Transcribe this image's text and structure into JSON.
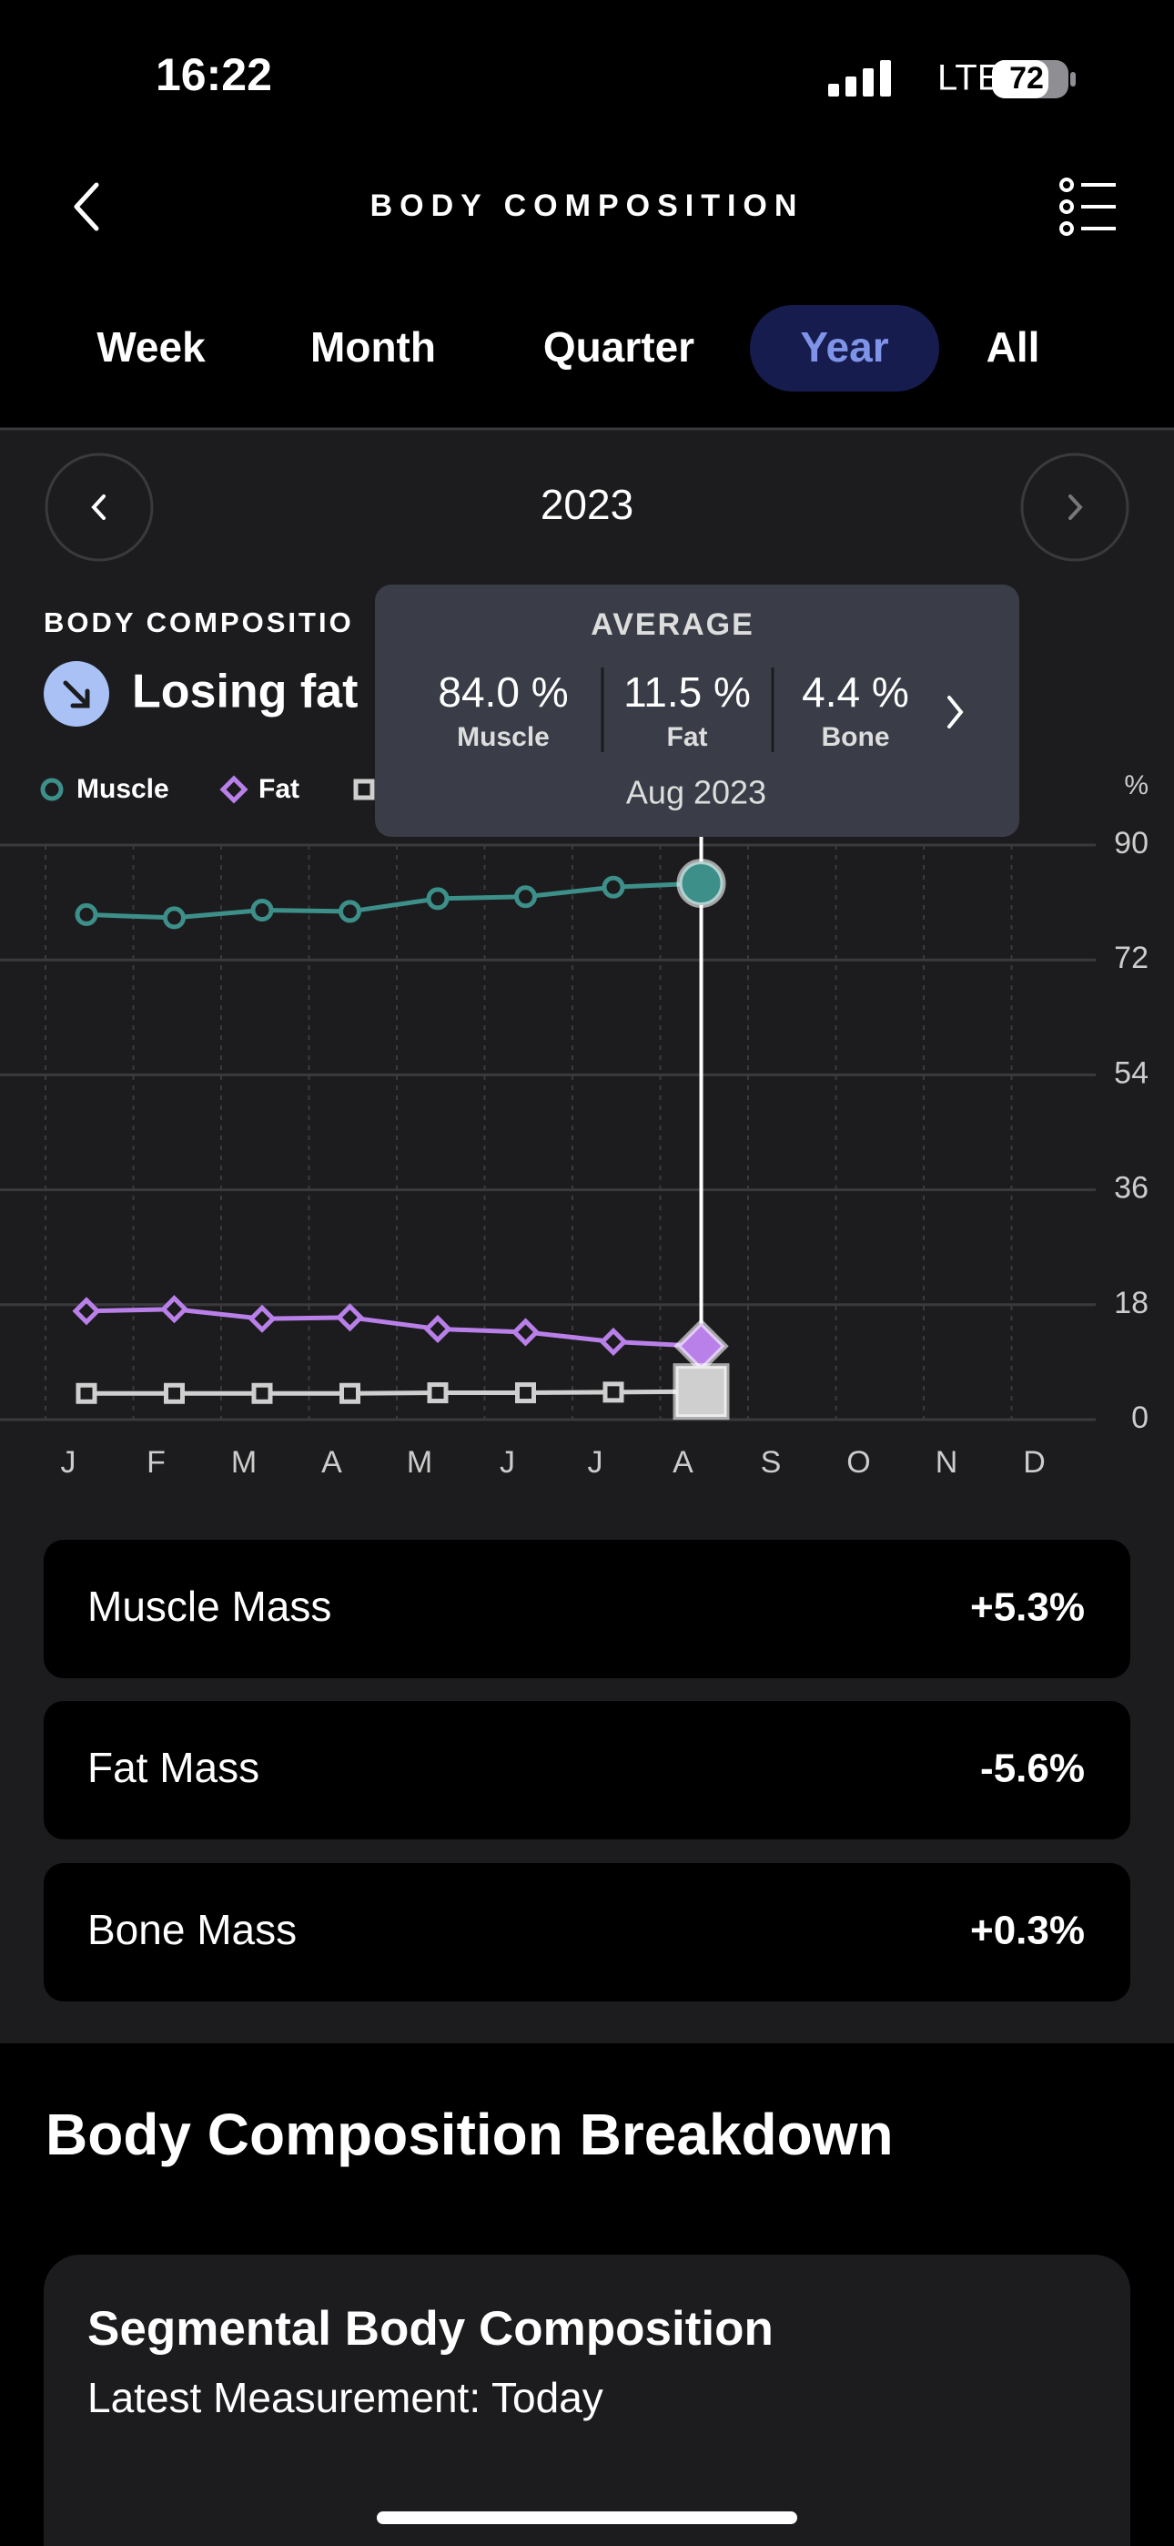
{
  "status_bar": {
    "time": "16:22",
    "network": "LTE",
    "battery": "72"
  },
  "header": {
    "title": "BODY COMPOSITION"
  },
  "tabs": {
    "items": [
      "Week",
      "Month",
      "Quarter",
      "Year",
      "All"
    ],
    "selected": "Year"
  },
  "period": "2023",
  "section_label": "BODY COMPOSITIO",
  "trend": "Losing fat",
  "chart_data": {
    "type": "line",
    "y_label": "%",
    "categories": [
      "J",
      "F",
      "M",
      "A",
      "M",
      "J",
      "J",
      "A",
      "S",
      "O",
      "N",
      "D"
    ],
    "series": [
      {
        "name": "Muscle",
        "color": "#3d8f8a",
        "marker": "circle",
        "values": [
          79.1,
          78.6,
          79.8,
          79.6,
          81.6,
          81.9,
          83.4,
          84.0,
          null,
          null,
          null,
          null
        ]
      },
      {
        "name": "Fat",
        "color": "#b980ea",
        "marker": "diamond",
        "values": [
          17.0,
          17.3,
          15.8,
          16.0,
          14.2,
          13.7,
          12.2,
          11.5,
          null,
          null,
          null,
          null
        ]
      },
      {
        "name": "Bone",
        "color": "#cfcfcf",
        "marker": "square",
        "values": [
          4.1,
          4.1,
          4.1,
          4.1,
          4.2,
          4.2,
          4.3,
          4.4,
          null,
          null,
          null,
          null
        ]
      }
    ],
    "ylim": [
      0,
      90
    ],
    "yticks": [
      0,
      18,
      36,
      54,
      72,
      90
    ],
    "grid": true
  },
  "tooltip": {
    "title": "AVERAGE",
    "items": [
      {
        "value": "84.0 %",
        "label": "Muscle"
      },
      {
        "value": "11.5 %",
        "label": "Fat"
      },
      {
        "value": "4.4 %",
        "label": "Bone"
      }
    ],
    "date": "Aug 2023"
  },
  "stats": [
    {
      "label": "Muscle Mass",
      "value": "+5.3%"
    },
    {
      "label": "Fat Mass",
      "value": "-5.6%"
    },
    {
      "label": "Bone Mass",
      "value": "+0.3%"
    }
  ],
  "breakdown": {
    "title": "Body Composition Breakdown",
    "card_title": "Segmental Body Composition",
    "card_subtitle": "Latest Measurement: Today"
  }
}
